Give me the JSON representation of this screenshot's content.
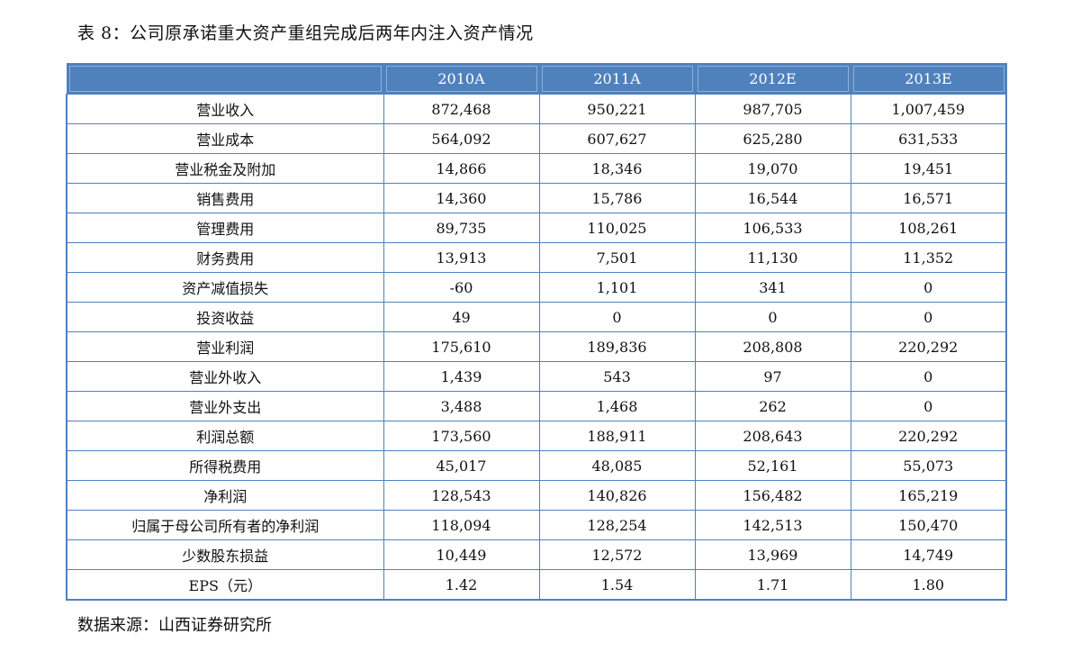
{
  "caption": "表 8：公司原承诺重大资产重组完成后两年内注入资产情况",
  "table": {
    "headers": [
      "",
      "2010A",
      "2011A",
      "2012E",
      "2013E"
    ],
    "rows": [
      [
        "营业收入",
        "872,468",
        "950,221",
        "987,705",
        "1,007,459"
      ],
      [
        "营业成本",
        "564,092",
        "607,627",
        "625,280",
        "631,533"
      ],
      [
        "营业税金及附加",
        "14,866",
        "18,346",
        "19,070",
        "19,451"
      ],
      [
        "销售费用",
        "14,360",
        "15,786",
        "16,544",
        "16,571"
      ],
      [
        "管理费用",
        "89,735",
        "110,025",
        "106,533",
        "108,261"
      ],
      [
        "财务费用",
        "13,913",
        "7,501",
        "11,130",
        "11,352"
      ],
      [
        "资产减值损失",
        "-60",
        "1,101",
        "341",
        "0"
      ],
      [
        "投资收益",
        "49",
        "0",
        "0",
        "0"
      ],
      [
        "营业利润",
        "175,610",
        "189,836",
        "208,808",
        "220,292"
      ],
      [
        "营业外收入",
        "1,439",
        "543",
        "97",
        "0"
      ],
      [
        "营业外支出",
        "3,488",
        "1,468",
        "262",
        "0"
      ],
      [
        "利润总额",
        "173,560",
        "188,911",
        "208,643",
        "220,292"
      ],
      [
        "所得税费用",
        "45,017",
        "48,085",
        "52,161",
        "55,073"
      ],
      [
        "净利润",
        "128,543",
        "140,826",
        "156,482",
        "165,219"
      ],
      [
        "归属于母公司所有者的净利润",
        "118,094",
        "128,254",
        "142,513",
        "150,470"
      ],
      [
        "少数股东损益",
        "10,449",
        "12,572",
        "13,969",
        "14,749"
      ],
      [
        "EPS（元）",
        "1.42",
        "1.54",
        "1.71",
        "1.80"
      ]
    ]
  },
  "source": "数据来源：山西证券研究所",
  "colors": {
    "header_bg": "#4f81bd",
    "header_text": "#ffffff",
    "grid": "#4f81bd"
  }
}
